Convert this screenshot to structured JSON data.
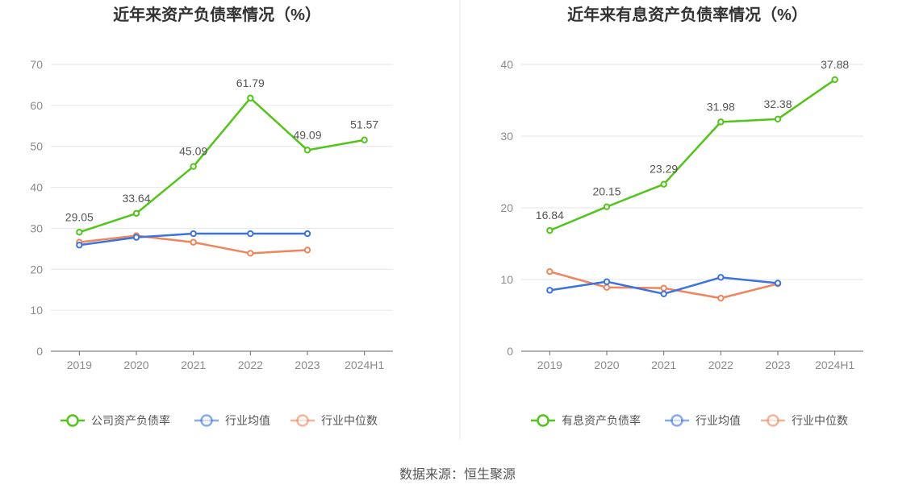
{
  "source_text": "数据来源：恒生聚源",
  "colors": {
    "primary": "#52c41a",
    "avg": "#3b73e0",
    "median": "#f0845a"
  },
  "chart_data": [
    {
      "type": "line",
      "title": "近年来资产负债率情况（%）",
      "categories": [
        "2019",
        "2020",
        "2021",
        "2022",
        "2023",
        "2024H1"
      ],
      "ylim": [
        0,
        70
      ],
      "yticks": [
        0,
        10,
        20,
        30,
        40,
        50,
        60,
        70
      ],
      "grid": true,
      "legend": "bottom",
      "series": [
        {
          "name": "公司资产负债率",
          "color": "#52c41a",
          "labels": true,
          "values": [
            29.05,
            33.64,
            45.09,
            61.79,
            49.09,
            51.57
          ]
        },
        {
          "name": "行业均值",
          "color": "#3b73e0",
          "labels": false,
          "values": [
            25.9,
            27.8,
            28.7,
            28.7,
            28.7,
            null
          ]
        },
        {
          "name": "行业中位数",
          "color": "#f0845a",
          "labels": false,
          "values": [
            26.6,
            28.2,
            26.6,
            23.9,
            24.7,
            null
          ]
        }
      ]
    },
    {
      "type": "line",
      "title": "近年来有息资产负债率情况（%）",
      "categories": [
        "2019",
        "2020",
        "2021",
        "2022",
        "2023",
        "2024H1"
      ],
      "ylim": [
        0,
        40
      ],
      "yticks": [
        0,
        10,
        20,
        30,
        40
      ],
      "grid": true,
      "legend": "bottom",
      "series": [
        {
          "name": "有息资产负债率",
          "color": "#52c41a",
          "labels": true,
          "values": [
            16.84,
            20.15,
            23.29,
            31.98,
            32.38,
            37.88
          ]
        },
        {
          "name": "行业均值",
          "color": "#3b73e0",
          "labels": false,
          "values": [
            8.5,
            9.7,
            8.0,
            10.3,
            9.5,
            null
          ]
        },
        {
          "name": "行业中位数",
          "color": "#f0845a",
          "labels": false,
          "values": [
            11.1,
            8.9,
            8.8,
            7.4,
            9.4,
            null
          ]
        }
      ]
    }
  ]
}
